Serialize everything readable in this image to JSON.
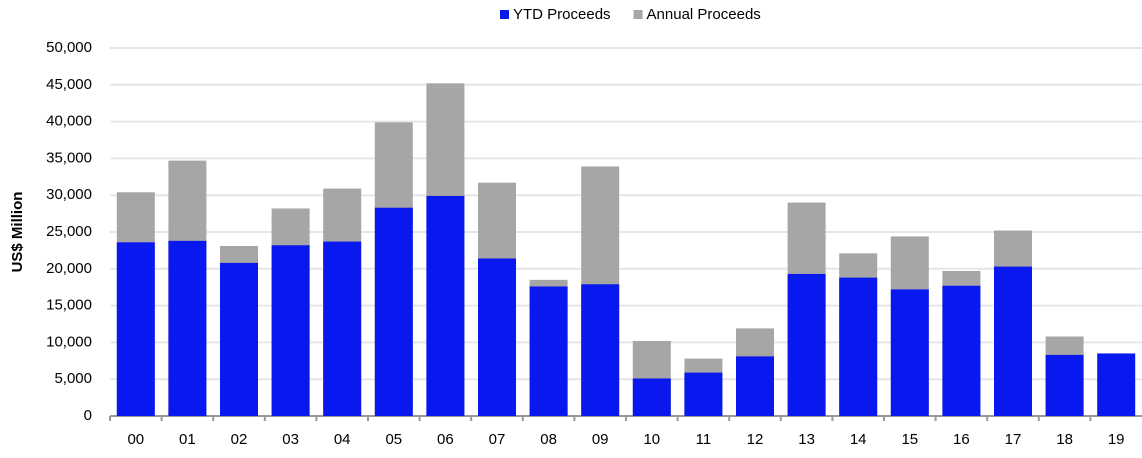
{
  "chart_data": {
    "type": "bar",
    "overlap": true,
    "ylabel": "US$ Million",
    "categories": [
      "00",
      "01",
      "02",
      "03",
      "04",
      "05",
      "06",
      "07",
      "08",
      "09",
      "10",
      "11",
      "12",
      "13",
      "14",
      "15",
      "16",
      "17",
      "18",
      "19"
    ],
    "series": [
      {
        "name": "Annual Proceeds",
        "color": "#a6a6a6",
        "values": [
          30400,
          34700,
          23100,
          28200,
          30900,
          39900,
          45200,
          31700,
          18500,
          33900,
          10200,
          7800,
          11900,
          29000,
          22100,
          24400,
          19700,
          25200,
          10800,
          null
        ]
      },
      {
        "name": "YTD Proceeds",
        "color": "#0a18f0",
        "values": [
          23600,
          23800,
          20800,
          23200,
          23700,
          28300,
          29900,
          21400,
          17600,
          17900,
          5100,
          5900,
          8100,
          19300,
          18800,
          17200,
          17700,
          20300,
          8300,
          8500
        ]
      }
    ],
    "legend_order": [
      1,
      0
    ],
    "ylim": [
      0,
      50000
    ],
    "yticks": [
      0,
      {
        "value": 5000,
        "label": "5,000"
      },
      {
        "value": 10000,
        "label": "10,000"
      },
      {
        "value": 15000,
        "label": "15,000"
      },
      {
        "value": 20000,
        "label": "20,000"
      },
      {
        "value": 25000,
        "label": "25,000"
      },
      {
        "value": 30000,
        "label": "30,000"
      },
      {
        "value": 35000,
        "label": "35,000"
      },
      {
        "value": 40000,
        "label": "40,000"
      },
      {
        "value": 45000,
        "label": "45,000"
      },
      {
        "value": 50000,
        "label": "50,000"
      }
    ],
    "grid": true
  }
}
